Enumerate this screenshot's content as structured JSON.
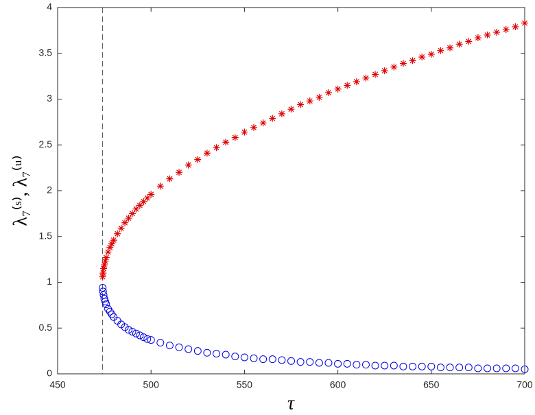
{
  "chart_data": {
    "type": "scatter",
    "xlabel": "τ",
    "ylabel": "λ₇⁽ˢ⁾,  λ₇⁽ᵘ⁾",
    "x": [
      474.1,
      474.3,
      474.6,
      475,
      475.5,
      476,
      477,
      478,
      479,
      480,
      482,
      484,
      486,
      488,
      490,
      492,
      494,
      496,
      498,
      500,
      505,
      510,
      515,
      520,
      525,
      530,
      535,
      540,
      545,
      550,
      555,
      560,
      565,
      570,
      575,
      580,
      585,
      590,
      595,
      600,
      605,
      610,
      615,
      620,
      625,
      630,
      635,
      640,
      645,
      650,
      655,
      660,
      665,
      670,
      675,
      680,
      685,
      690,
      695,
      700
    ],
    "series": [
      {
        "marker": "asterisk",
        "color": "#e00000",
        "values": [
          1.06,
          1.1,
          1.15,
          1.19,
          1.23,
          1.27,
          1.33,
          1.38,
          1.42,
          1.46,
          1.53,
          1.59,
          1.65,
          1.7,
          1.75,
          1.8,
          1.84,
          1.88,
          1.92,
          1.96,
          2.05,
          2.13,
          2.2,
          2.28,
          2.34,
          2.41,
          2.47,
          2.53,
          2.58,
          2.64,
          2.69,
          2.74,
          2.79,
          2.84,
          2.89,
          2.94,
          2.98,
          3.02,
          3.07,
          3.11,
          3.15,
          3.19,
          3.23,
          3.27,
          3.31,
          3.35,
          3.39,
          3.42,
          3.46,
          3.49,
          3.53,
          3.56,
          3.6,
          3.63,
          3.67,
          3.7,
          3.73,
          3.76,
          3.79,
          3.83
        ]
      },
      {
        "marker": "circle",
        "color": "#0000e0",
        "values": [
          0.94,
          0.9,
          0.86,
          0.82,
          0.79,
          0.76,
          0.71,
          0.68,
          0.65,
          0.62,
          0.58,
          0.54,
          0.51,
          0.48,
          0.46,
          0.44,
          0.42,
          0.4,
          0.38,
          0.37,
          0.34,
          0.31,
          0.29,
          0.27,
          0.25,
          0.23,
          0.22,
          0.21,
          0.19,
          0.18,
          0.17,
          0.16,
          0.16,
          0.15,
          0.14,
          0.13,
          0.13,
          0.12,
          0.12,
          0.11,
          0.11,
          0.1,
          0.1,
          0.09,
          0.09,
          0.09,
          0.08,
          0.08,
          0.08,
          0.08,
          0.07,
          0.07,
          0.07,
          0.07,
          0.06,
          0.06,
          0.06,
          0.06,
          0.06,
          0.05
        ]
      }
    ],
    "vline": 474,
    "xlim": [
      450,
      700
    ],
    "ylim": [
      0,
      4
    ],
    "xticks": [
      450,
      500,
      550,
      600,
      650,
      700
    ],
    "yticks": [
      0,
      0.5,
      1,
      1.5,
      2,
      2.5,
      3,
      3.5,
      4
    ],
    "grid": false
  }
}
